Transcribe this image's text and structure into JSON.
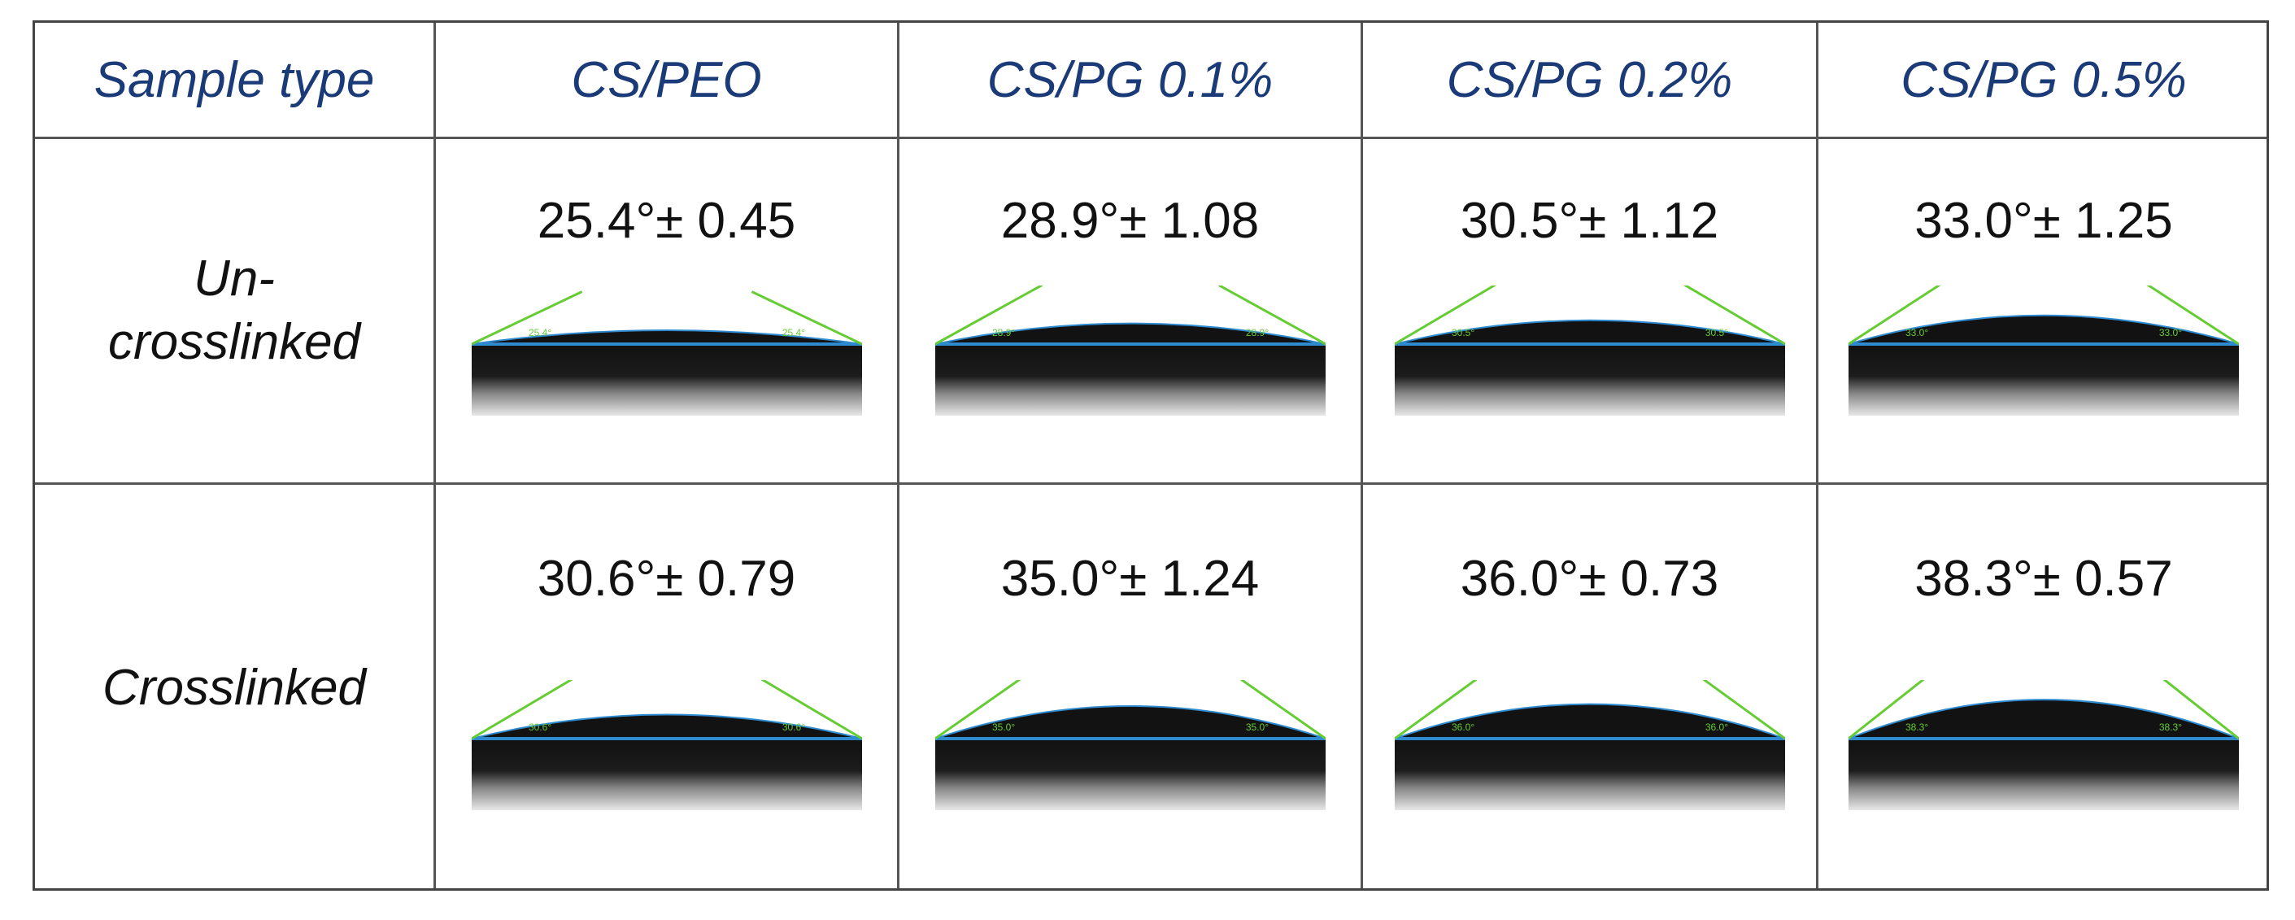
{
  "header": {
    "sample_type": "Sample type",
    "columns": [
      "CS/PEO",
      "CS/PG 0.1%",
      "CS/PG 0.2%",
      "CS/PG 0.5%"
    ]
  },
  "rows": [
    {
      "label": "Un-\ncrosslinked",
      "cells": [
        {
          "angle_text": "25.4°± 0.45",
          "angle_deg": 25.4,
          "image_label": "25.4°"
        },
        {
          "angle_text": "28.9°± 1.08",
          "angle_deg": 28.9,
          "image_label": "28.9°"
        },
        {
          "angle_text": "30.5°± 1.12",
          "angle_deg": 30.5,
          "image_label": "30.5°"
        },
        {
          "angle_text": "33.0°± 1.25",
          "angle_deg": 33.0,
          "image_label": "33.0°"
        }
      ]
    },
    {
      "label": "Crosslinked",
      "cells": [
        {
          "angle_text": "30.6°± 0.79",
          "angle_deg": 30.6,
          "image_label": "30.6°"
        },
        {
          "angle_text": "35.0°± 1.24",
          "angle_deg": 35.0,
          "image_label": "35.0°"
        },
        {
          "angle_text": "36.0°± 0.73",
          "angle_deg": 36.0,
          "image_label": "36.0°"
        },
        {
          "angle_text": "38.3°± 0.57",
          "angle_deg": 38.3,
          "image_label": "38.3°"
        }
      ]
    }
  ],
  "colors": {
    "header_text": "#1a3a78",
    "baseline": "#2e8bd0",
    "tangent": "#66cc33"
  }
}
